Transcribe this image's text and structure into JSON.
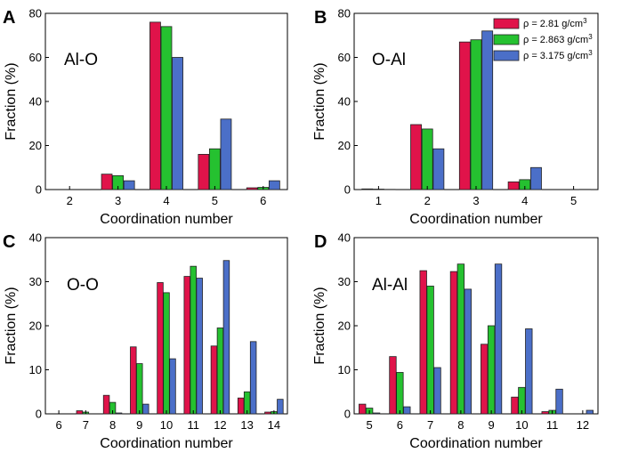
{
  "legend": {
    "items": [
      {
        "rho_label": "ρ = 2.81 g/cm",
        "sup": "3",
        "color": "#E0134A"
      },
      {
        "rho_label": "ρ = 2.863 g/cm",
        "sup": "3",
        "color": "#25C130"
      },
      {
        "rho_label": "ρ = 3.175 g/cm",
        "sup": "3",
        "color": "#4B6FC8"
      }
    ]
  },
  "chart_data": [
    {
      "type": "bar",
      "panel_label": "A",
      "annotation": "Al-O",
      "xlabel": "Coordination number",
      "ylabel": "Fraction (%)",
      "categories": [
        "2",
        "3",
        "4",
        "5",
        "6"
      ],
      "yticks": [
        "0",
        "20",
        "40",
        "60",
        "80"
      ],
      "ylim": [
        0,
        80
      ],
      "series": [
        {
          "name": "ρ = 2.81 g/cm3",
          "values": [
            0,
            7,
            76,
            16,
            0.8
          ]
        },
        {
          "name": "ρ = 2.863 g/cm3",
          "values": [
            0,
            6.3,
            74,
            18.5,
            1
          ]
        },
        {
          "name": "ρ = 3.175 g/cm3",
          "values": [
            0,
            4,
            60,
            32,
            4
          ]
        }
      ]
    },
    {
      "type": "bar",
      "panel_label": "B",
      "annotation": "O-Al",
      "xlabel": "Coordination number",
      "ylabel": "Fraction (%)",
      "categories": [
        "1",
        "2",
        "3",
        "4",
        "5"
      ],
      "yticks": [
        "0",
        "20",
        "40",
        "60",
        "80"
      ],
      "ylim": [
        0,
        80
      ],
      "series": [
        {
          "name": "ρ = 2.81 g/cm3",
          "values": [
            0.3,
            29.5,
            67,
            3.5,
            0
          ]
        },
        {
          "name": "ρ = 2.863 g/cm3",
          "values": [
            0.2,
            27.5,
            68,
            4.5,
            0
          ]
        },
        {
          "name": "ρ = 3.175 g/cm3",
          "values": [
            0.1,
            18.5,
            72,
            10,
            0.1
          ]
        }
      ]
    },
    {
      "type": "bar",
      "panel_label": "C",
      "annotation": "O-O",
      "xlabel": "Coordination number",
      "ylabel": "Fraction (%)",
      "categories": [
        "6",
        "7",
        "8",
        "9",
        "10",
        "11",
        "12",
        "13",
        "14"
      ],
      "yticks": [
        "0",
        "10",
        "20",
        "30",
        "40"
      ],
      "ylim": [
        0,
        40
      ],
      "series": [
        {
          "name": "ρ = 2.81 g/cm3",
          "values": [
            0,
            0.7,
            4.2,
            15.2,
            29.8,
            31.2,
            15.4,
            3.6,
            0.4
          ]
        },
        {
          "name": "ρ = 2.863 g/cm3",
          "values": [
            0,
            0.4,
            2.6,
            11.4,
            27.5,
            33.5,
            19.5,
            5,
            0.5
          ]
        },
        {
          "name": "ρ = 3.175 g/cm3",
          "values": [
            0,
            0,
            0.2,
            2.2,
            12.5,
            30.8,
            34.8,
            16.4,
            3.3
          ]
        }
      ]
    },
    {
      "type": "bar",
      "panel_label": "D",
      "annotation": "Al-Al",
      "xlabel": "Coordination number",
      "ylabel": "Fraction (%)",
      "categories": [
        "5",
        "6",
        "7",
        "8",
        "9",
        "10",
        "11",
        "12"
      ],
      "yticks": [
        "0",
        "10",
        "20",
        "30",
        "40"
      ],
      "ylim": [
        0,
        40
      ],
      "series": [
        {
          "name": "ρ = 2.81 g/cm3",
          "values": [
            2.2,
            13,
            32.5,
            32.3,
            15.8,
            3.8,
            0.5,
            0
          ]
        },
        {
          "name": "ρ = 2.863 g/cm3",
          "values": [
            1.3,
            9.4,
            29,
            34,
            20,
            6,
            0.8,
            0
          ]
        },
        {
          "name": "ρ = 3.175 g/cm3",
          "values": [
            0.2,
            1.6,
            10.5,
            28.3,
            34,
            19.3,
            5.6,
            0.8
          ]
        }
      ]
    }
  ]
}
